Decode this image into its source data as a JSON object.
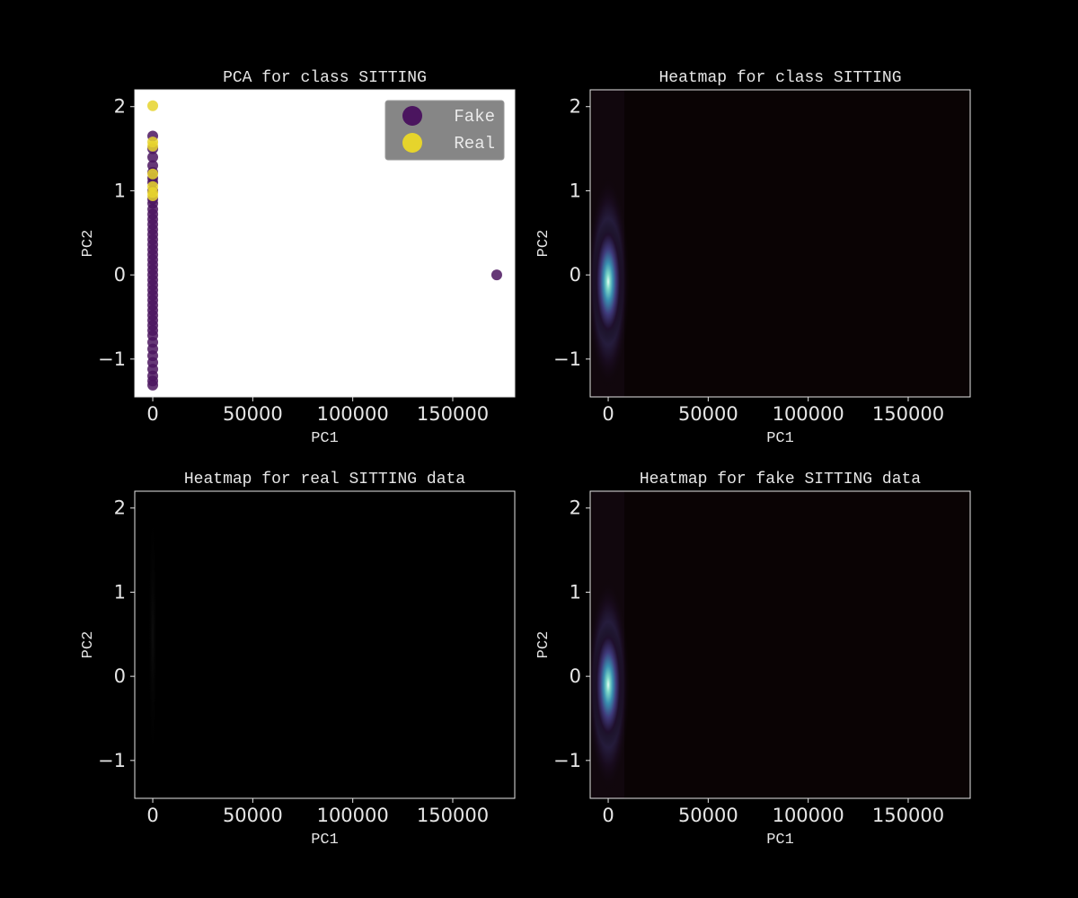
{
  "chart_data": [
    {
      "type": "scatter",
      "title": "PCA for class SITTING",
      "xlabel": "PC1",
      "ylabel": "PC2",
      "xlim": [
        -9000,
        181000
      ],
      "ylim": [
        -1.45,
        2.2
      ],
      "xticks": [
        0,
        50000,
        100000,
        150000
      ],
      "yticks": [
        -1,
        0,
        1,
        2
      ],
      "background": "#ffffff",
      "legend": {
        "placement": "top-right",
        "entries": [
          {
            "label": "Fake",
            "color": "#4b155f"
          },
          {
            "label": "Real",
            "color": "#e6d42c"
          }
        ]
      },
      "series": [
        {
          "name": "Real",
          "color": "#e6d42c",
          "points": [
            [
              0,
              2.01
            ],
            [
              0,
              1.58
            ],
            [
              0,
              1.53
            ],
            [
              0,
              1.2
            ],
            [
              0,
              1.05
            ],
            [
              0,
              0.98
            ],
            [
              0,
              0.94
            ]
          ]
        },
        {
          "name": "Fake",
          "color": "#4b155f",
          "points": [
            [
              0,
              1.65
            ],
            [
              0,
              1.5
            ],
            [
              0,
              1.4
            ],
            [
              0,
              1.3
            ],
            [
              0,
              1.22
            ],
            [
              0,
              1.15
            ],
            [
              0,
              1.1
            ],
            [
              0,
              1.0
            ],
            [
              0,
              0.9
            ],
            [
              0,
              0.85
            ],
            [
              0,
              0.78
            ],
            [
              0,
              0.72
            ],
            [
              0,
              0.66
            ],
            [
              0,
              0.6
            ],
            [
              0,
              0.54
            ],
            [
              0,
              0.48
            ],
            [
              0,
              0.42
            ],
            [
              0,
              0.36
            ],
            [
              0,
              0.3
            ],
            [
              0,
              0.24
            ],
            [
              0,
              0.18
            ],
            [
              0,
              0.12
            ],
            [
              0,
              0.06
            ],
            [
              0,
              0.0
            ],
            [
              0,
              -0.06
            ],
            [
              0,
              -0.12
            ],
            [
              0,
              -0.18
            ],
            [
              0,
              -0.24
            ],
            [
              0,
              -0.3
            ],
            [
              0,
              -0.36
            ],
            [
              0,
              -0.42
            ],
            [
              0,
              -0.48
            ],
            [
              0,
              -0.54
            ],
            [
              0,
              -0.6
            ],
            [
              0,
              -0.66
            ],
            [
              0,
              -0.72
            ],
            [
              0,
              -0.8
            ],
            [
              0,
              -0.88
            ],
            [
              0,
              -0.96
            ],
            [
              0,
              -1.04
            ],
            [
              0,
              -1.12
            ],
            [
              0,
              -1.2
            ],
            [
              0,
              -1.26
            ],
            [
              0,
              -1.31
            ],
            [
              172000,
              0.0
            ]
          ]
        }
      ]
    },
    {
      "type": "heatmap",
      "title": "Heatmap for class SITTING",
      "xlabel": "PC1",
      "ylabel": "PC2",
      "xlim": [
        -9000,
        181000
      ],
      "ylim": [
        -1.45,
        2.2
      ],
      "xticks": [
        0,
        50000,
        100000,
        150000
      ],
      "yticks": [
        -1,
        0,
        1,
        2
      ],
      "peak": {
        "x": 0,
        "y": -0.08,
        "intensity": 1.0
      },
      "background": "#0a0304"
    },
    {
      "type": "heatmap",
      "title": "Heatmap for real SITTING data",
      "xlabel": "PC1",
      "ylabel": "PC2",
      "xlim": [
        -9000,
        181000
      ],
      "ylim": [
        -1.45,
        2.2
      ],
      "xticks": [
        0,
        50000,
        100000,
        150000
      ],
      "yticks": [
        -1,
        0,
        1,
        2
      ],
      "peak": {
        "x": 0,
        "y": 0.4,
        "intensity": 0.05
      },
      "background": "#000000"
    },
    {
      "type": "heatmap",
      "title": "Heatmap for fake SITTING data",
      "xlabel": "PC1",
      "ylabel": "PC2",
      "xlim": [
        -9000,
        181000
      ],
      "ylim": [
        -1.45,
        2.2
      ],
      "xticks": [
        0,
        50000,
        100000,
        150000
      ],
      "yticks": [
        -1,
        0,
        1,
        2
      ],
      "peak": {
        "x": 0,
        "y": -0.1,
        "intensity": 1.0
      },
      "background": "#0a0304"
    }
  ]
}
